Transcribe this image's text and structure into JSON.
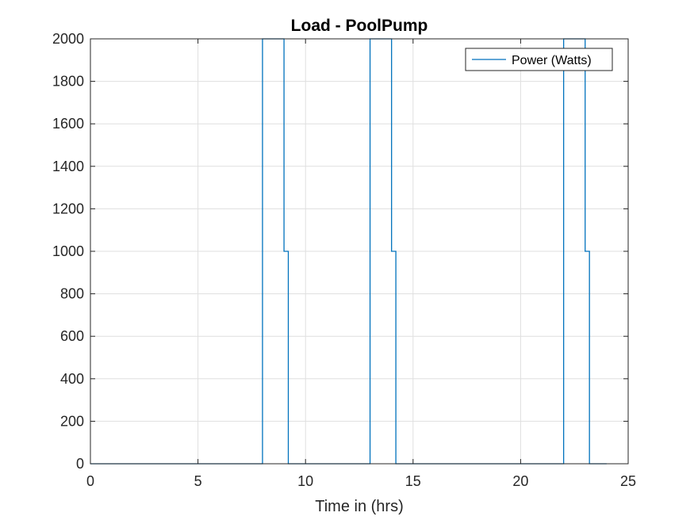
{
  "chart_data": {
    "type": "line",
    "title": "Load - PoolPump",
    "xlabel": "Time in (hrs)",
    "ylabel": "",
    "xlim": [
      0,
      25
    ],
    "ylim": [
      0,
      2000
    ],
    "xticks": [
      0,
      5,
      10,
      15,
      20,
      25
    ],
    "yticks": [
      0,
      200,
      400,
      600,
      800,
      1000,
      1200,
      1400,
      1600,
      1800,
      2000
    ],
    "grid": true,
    "legend": {
      "placement": "top-right",
      "entries": [
        "Power (Watts)"
      ]
    },
    "series": [
      {
        "name": "Power (Watts)",
        "color": "#0072BD",
        "step": "post",
        "x": [
          0,
          8,
          9,
          9.2,
          13,
          14,
          14.2,
          22,
          23,
          23.2,
          24
        ],
        "y": [
          0,
          2000,
          1000,
          0,
          2000,
          1000,
          0,
          2000,
          1000,
          0,
          0
        ]
      }
    ]
  }
}
